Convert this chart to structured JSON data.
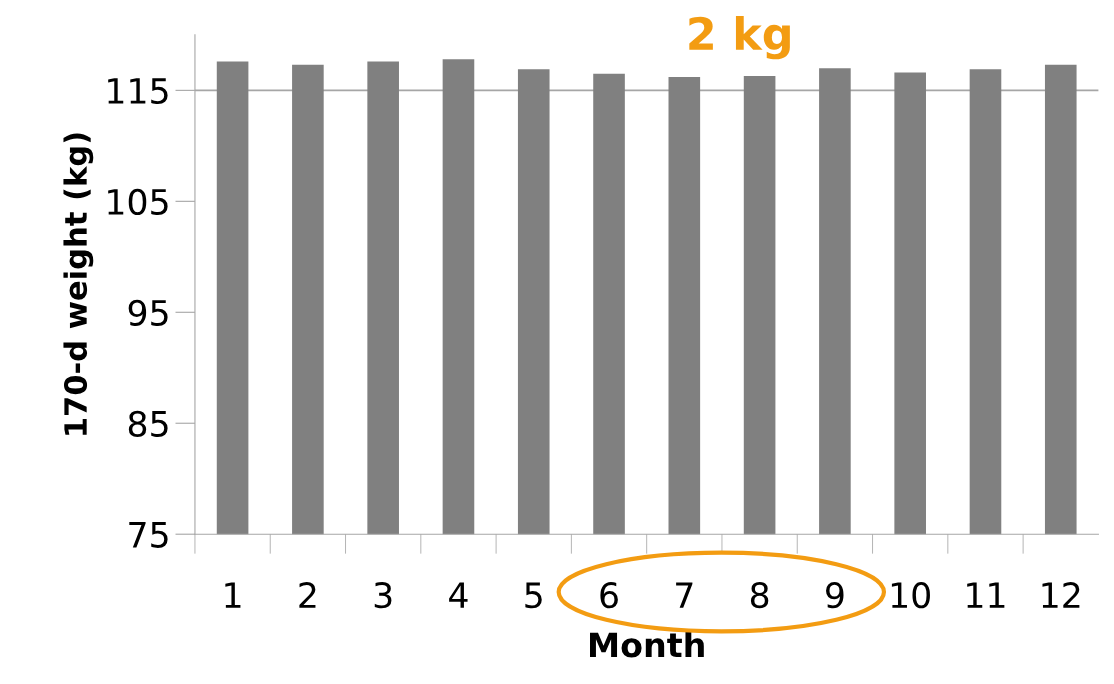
{
  "chart_data": {
    "type": "bar",
    "xlabel": "Month",
    "ylabel": "170-d weight (kg)",
    "categories": [
      "1",
      "2",
      "3",
      "4",
      "5",
      "6",
      "7",
      "8",
      "9",
      "10",
      "11",
      "12"
    ],
    "values": [
      117.6,
      117.3,
      117.6,
      117.8,
      116.9,
      116.5,
      116.2,
      116.3,
      117.0,
      116.6,
      116.9,
      117.3
    ],
    "color": "#808080",
    "ylim": [
      75,
      120
    ],
    "yticks": [
      75,
      85,
      95,
      105,
      115
    ],
    "grid": false,
    "ref_lines": [
      {
        "axis": "y",
        "value": 115,
        "color": "#a6a6a6"
      }
    ],
    "annotations": [
      "2 kg"
    ]
  }
}
